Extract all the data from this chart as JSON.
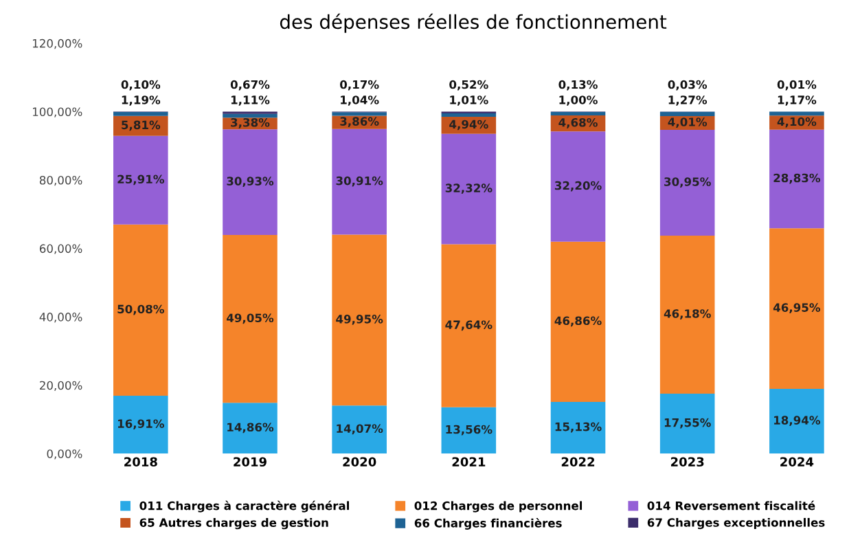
{
  "chart_data": {
    "type": "bar",
    "stacked": true,
    "title": "des dépenses réelles de fonctionnement",
    "categories": [
      "2018",
      "2019",
      "2020",
      "2021",
      "2022",
      "2023",
      "2024"
    ],
    "ylim": [
      0,
      120
    ],
    "yticks": [
      {
        "value": 0,
        "label": "0,00%"
      },
      {
        "value": 20,
        "label": "20,00%"
      },
      {
        "value": 40,
        "label": "40,00%"
      },
      {
        "value": 60,
        "label": "60,00%"
      },
      {
        "value": 80,
        "label": "80,00%"
      },
      {
        "value": 100,
        "label": "100,00%"
      },
      {
        "value": 120,
        "label": "120,00%"
      }
    ],
    "grid": false,
    "legend": "bottom",
    "series": [
      {
        "name": "011 Charges à caractère général",
        "color": "#29a9e6",
        "values": [
          16.91,
          14.86,
          14.07,
          13.56,
          15.13,
          17.55,
          18.94
        ],
        "value_labels": [
          "16,91%",
          "14,86%",
          "14,07%",
          "13,56%",
          "15,13%",
          "17,55%",
          "18,94%"
        ]
      },
      {
        "name": "012 Charges de personnel",
        "color": "#f5842a",
        "values": [
          50.08,
          49.05,
          49.95,
          47.64,
          46.86,
          46.18,
          46.95
        ],
        "value_labels": [
          "50,08%",
          "49,05%",
          "49,95%",
          "47,64%",
          "46,86%",
          "46,18%",
          "46,95%"
        ]
      },
      {
        "name": "014 Reversement fiscalité",
        "color": "#9460d6",
        "values": [
          25.91,
          30.93,
          30.91,
          32.32,
          32.2,
          30.95,
          28.83
        ],
        "value_labels": [
          "25,91%",
          "30,93%",
          "30,91%",
          "32,32%",
          "32,20%",
          "30,95%",
          "28,83%"
        ]
      },
      {
        "name": "65 Autres charges de gestion",
        "color": "#c4541e",
        "values": [
          5.81,
          3.38,
          3.86,
          4.94,
          4.68,
          4.01,
          4.1
        ],
        "value_labels": [
          "5,81%",
          "3,38%",
          "3,86%",
          "4,94%",
          "4,68%",
          "4,01%",
          "4,10%"
        ]
      },
      {
        "name": "66 Charges financières",
        "color": "#1e6394",
        "values": [
          1.19,
          1.11,
          1.04,
          1.01,
          1.0,
          1.27,
          1.17
        ],
        "value_labels": [
          "1,19%",
          "1,11%",
          "1,04%",
          "1,01%",
          "1,00%",
          "1,27%",
          "1,17%"
        ]
      },
      {
        "name": "67 Charges exceptionnelles",
        "color": "#3b2d6b",
        "values": [
          0.1,
          0.67,
          0.17,
          0.52,
          0.13,
          0.03,
          0.01
        ],
        "value_labels": [
          "0,10%",
          "0,67%",
          "0,17%",
          "0,52%",
          "0,13%",
          "0,03%",
          "0,01%"
        ]
      }
    ]
  }
}
